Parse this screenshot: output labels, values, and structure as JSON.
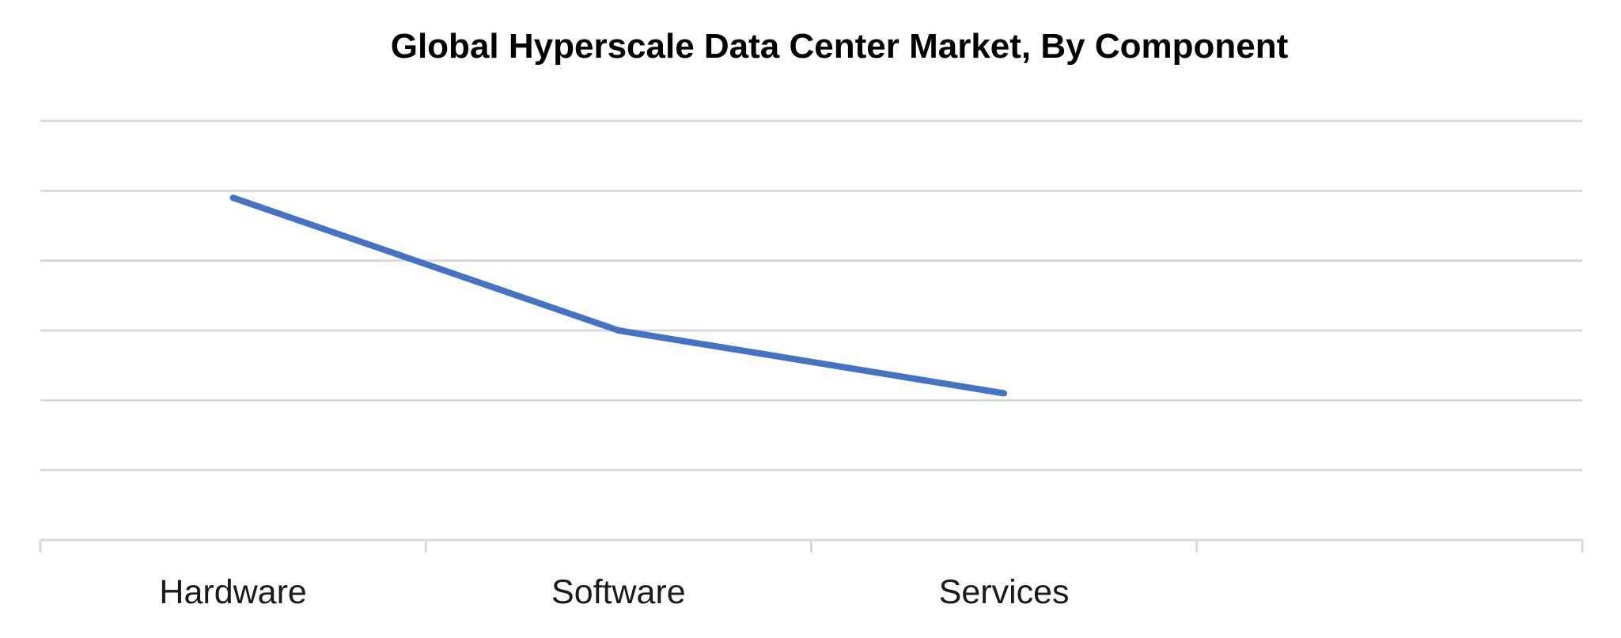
{
  "chart_data": {
    "type": "line",
    "title": "Global Hyperscale Data Center Market, By Component",
    "categories": [
      "Hardware",
      "Software",
      "Services"
    ],
    "slots": 4,
    "series": [
      {
        "values": [
          4.9,
          3.0,
          2.1
        ]
      }
    ],
    "ylim": [
      0,
      6
    ],
    "ygrid_step": 1,
    "grid": true,
    "yaxis_labels_visible": false,
    "colors": {
      "series": "#4472C4",
      "grid": "#D9D9D9"
    }
  }
}
